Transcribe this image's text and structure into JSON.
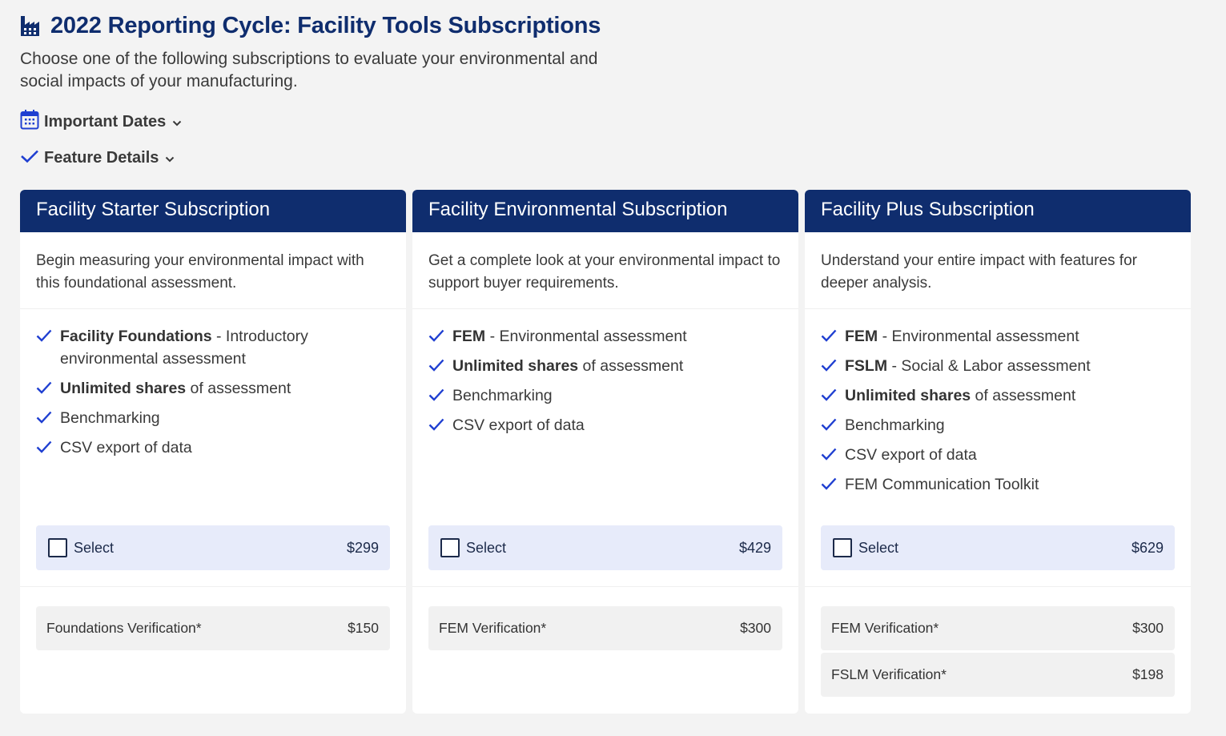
{
  "header": {
    "title": "2022 Reporting Cycle: Facility Tools Subscriptions",
    "subtitle": "Choose one of the following subscriptions to evaluate your environmental and social impacts of your manufacturing.",
    "icon": "factory-icon"
  },
  "disclosures": {
    "dates_label": "Important Dates",
    "features_label": "Feature Details"
  },
  "colors": {
    "navy": "#0f2d6e",
    "accent_blue": "#1f3fd1",
    "select_bg": "#e7ebfa"
  },
  "cards": [
    {
      "title": "Facility Starter Subscription",
      "description": "Begin measuring your environmental impact with this foundational assessment.",
      "features": [
        {
          "bold": "Facility Foundations",
          "rest": " - Introductory environmental assessment"
        },
        {
          "bold": "Unlimited shares",
          "rest": " of assessment"
        },
        {
          "bold": "",
          "rest": "Benchmarking"
        },
        {
          "bold": "",
          "rest": "CSV export of data"
        }
      ],
      "select_label": "Select",
      "price": "$299",
      "verifications": [
        {
          "label": "Foundations Verification*",
          "price": "$150"
        }
      ]
    },
    {
      "title": "Facility Environmental Subscription",
      "description": "Get a complete look at your environmental impact to support buyer requirements.",
      "features": [
        {
          "bold": "FEM",
          "rest": " - Environmental assessment"
        },
        {
          "bold": "Unlimited shares",
          "rest": " of assessment"
        },
        {
          "bold": "",
          "rest": "Benchmarking"
        },
        {
          "bold": "",
          "rest": "CSV export of data"
        }
      ],
      "select_label": "Select",
      "price": "$429",
      "verifications": [
        {
          "label": "FEM Verification*",
          "price": "$300"
        }
      ]
    },
    {
      "title": "Facility Plus Subscription",
      "description": "Understand your entire impact with features for deeper analysis.",
      "features": [
        {
          "bold": "FEM",
          "rest": " - Environmental assessment"
        },
        {
          "bold": "FSLM",
          "rest": " - Social & Labor assessment"
        },
        {
          "bold": "Unlimited shares",
          "rest": " of assessment"
        },
        {
          "bold": "",
          "rest": "Benchmarking"
        },
        {
          "bold": "",
          "rest": "CSV export of data"
        },
        {
          "bold": "",
          "rest": "FEM Communication Toolkit"
        }
      ],
      "select_label": "Select",
      "price": "$629",
      "verifications": [
        {
          "label": "FEM Verification*",
          "price": "$300"
        },
        {
          "label": "FSLM Verification*",
          "price": "$198"
        }
      ]
    }
  ]
}
